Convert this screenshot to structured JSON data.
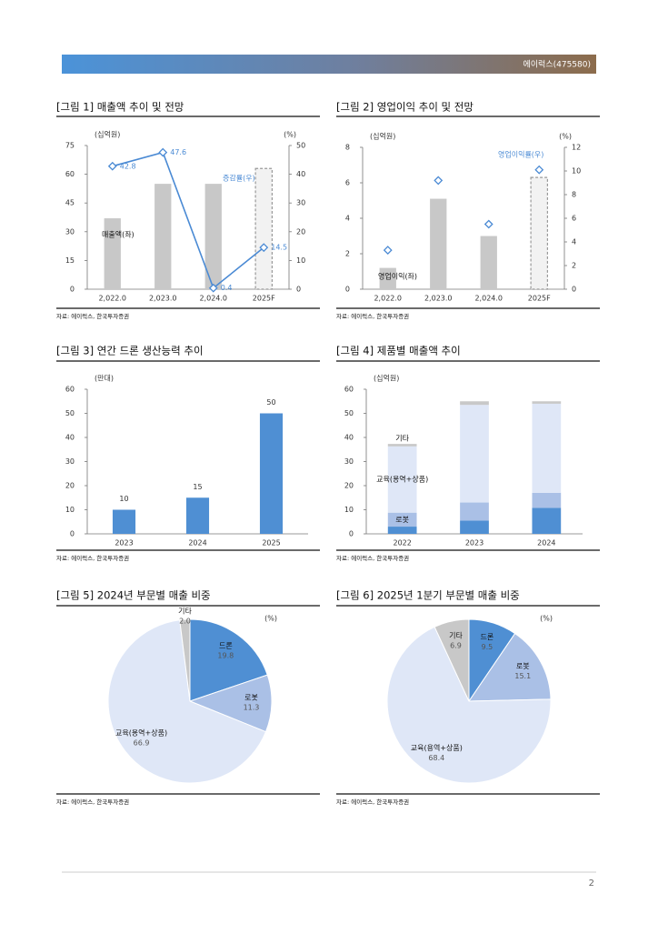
{
  "header": {
    "company": "에이럭스(475580)"
  },
  "page_number": "2",
  "chart_data": [
    {
      "type": "bar",
      "title": "[그림 1] 매출액 추이 및 전망",
      "y_label": "(십억원)",
      "y2_label": "(%)",
      "categories": [
        "2,022.0",
        "2,023.0",
        "2,024.0",
        "2025F"
      ],
      "series": [
        {
          "name": "매출액(좌)",
          "type": "bar",
          "color": "#c8c8c8",
          "values": [
            37,
            55,
            55,
            63
          ],
          "last_bar_dashed": true
        },
        {
          "name": "증감률(우)",
          "type": "line",
          "axis": "y2",
          "color": "#4a8ad4",
          "values": [
            42.8,
            47.6,
            0.4,
            14.5
          ],
          "show_labels": true
        }
      ],
      "ylim": [
        0,
        75
      ],
      "yticks": [
        0,
        15,
        30,
        45,
        60,
        75
      ],
      "y2lim": [
        0,
        50
      ],
      "y2ticks": [
        0,
        10,
        20,
        30,
        40,
        50
      ],
      "source": "자료: 에이럭스, 한국투자증권"
    },
    {
      "type": "bar",
      "title": "[그림 2] 영업이익 추이 및 전망",
      "y_label": "(십억원)",
      "y2_label": "(%)",
      "categories": [
        "2,022.0",
        "2,023.0",
        "2,024.0",
        "2025F"
      ],
      "series": [
        {
          "name": "영업이익(좌)",
          "type": "bar",
          "color": "#c8c8c8",
          "values": [
            1.2,
            5.1,
            3.0,
            6.3
          ],
          "last_bar_dashed": true
        },
        {
          "name": "영업이익률(우)",
          "type": "scatter",
          "axis": "y2",
          "color": "#4a8ad4",
          "values": [
            3.3,
            9.2,
            5.5,
            10.1
          ]
        }
      ],
      "ylim": [
        0,
        8
      ],
      "yticks": [
        0,
        2,
        4,
        6,
        8
      ],
      "y2lim": [
        0,
        12
      ],
      "y2ticks": [
        0,
        2,
        4,
        6,
        8,
        10,
        12
      ],
      "source": "자료: 에이럭스, 한국투자증권"
    },
    {
      "type": "bar",
      "title": "[그림 3] 연간 드론 생산능력 추이",
      "y_label": "(만대)",
      "categories": [
        "2023",
        "2024",
        "2025"
      ],
      "series": [
        {
          "type": "bar",
          "color": "#4f8fd3",
          "values": [
            10,
            15,
            50
          ],
          "show_labels": true
        }
      ],
      "ylim": [
        0,
        60
      ],
      "yticks": [
        0,
        10,
        20,
        30,
        40,
        50,
        60
      ],
      "source": "자료: 에이럭스, 한국투자증권"
    },
    {
      "type": "stacked_bar",
      "title": "[그림 4] 제품별 매출액 추이",
      "y_label": "(십억원)",
      "categories": [
        "2022",
        "2023",
        "2024"
      ],
      "series": [
        {
          "name": "드론",
          "color": "#4f8fd3",
          "values": [
            3.0,
            5.5,
            10.8
          ]
        },
        {
          "name": "로봇",
          "color": "#aac0e6",
          "values": [
            5.8,
            7.5,
            6.2
          ]
        },
        {
          "name": "교육(용역+상품)",
          "color": "#dfe7f7",
          "values": [
            27.5,
            40.5,
            37.0
          ]
        },
        {
          "name": "기타",
          "color": "#c8c8c8",
          "values": [
            1.0,
            1.5,
            1.0
          ]
        }
      ],
      "ylim": [
        0,
        60
      ],
      "yticks": [
        0,
        10,
        20,
        30,
        40,
        50,
        60
      ],
      "source": "자료: 에이럭스, 한국투자증권"
    },
    {
      "type": "pie",
      "title": "[그림 5] 2024년 부문별 매출 비중",
      "unit": "(%)",
      "categories": [
        "드론",
        "로봇",
        "교육(용역+상품)",
        "기타"
      ],
      "values": [
        19.8,
        11.3,
        66.9,
        2.0
      ],
      "value_labels": [
        "19.8",
        "11.3",
        "66.9",
        "2.0"
      ],
      "colors": [
        "#4f8fd3",
        "#aac0e6",
        "#dfe7f7",
        "#c8c8c8"
      ],
      "source": "자료: 에이럭스, 한국투자증권"
    },
    {
      "type": "pie",
      "title": "[그림 6] 2025년 1분기 부문별 매출 비중",
      "unit": "(%)",
      "categories": [
        "드론",
        "로봇",
        "교육(용역+상품)",
        "기타"
      ],
      "values": [
        9.5,
        15.1,
        68.4,
        6.9
      ],
      "colors": [
        "#4f8fd3",
        "#aac0e6",
        "#dfe7f7",
        "#c8c8c8"
      ],
      "source": "자료: 에이럭스, 한국투자증권"
    }
  ]
}
